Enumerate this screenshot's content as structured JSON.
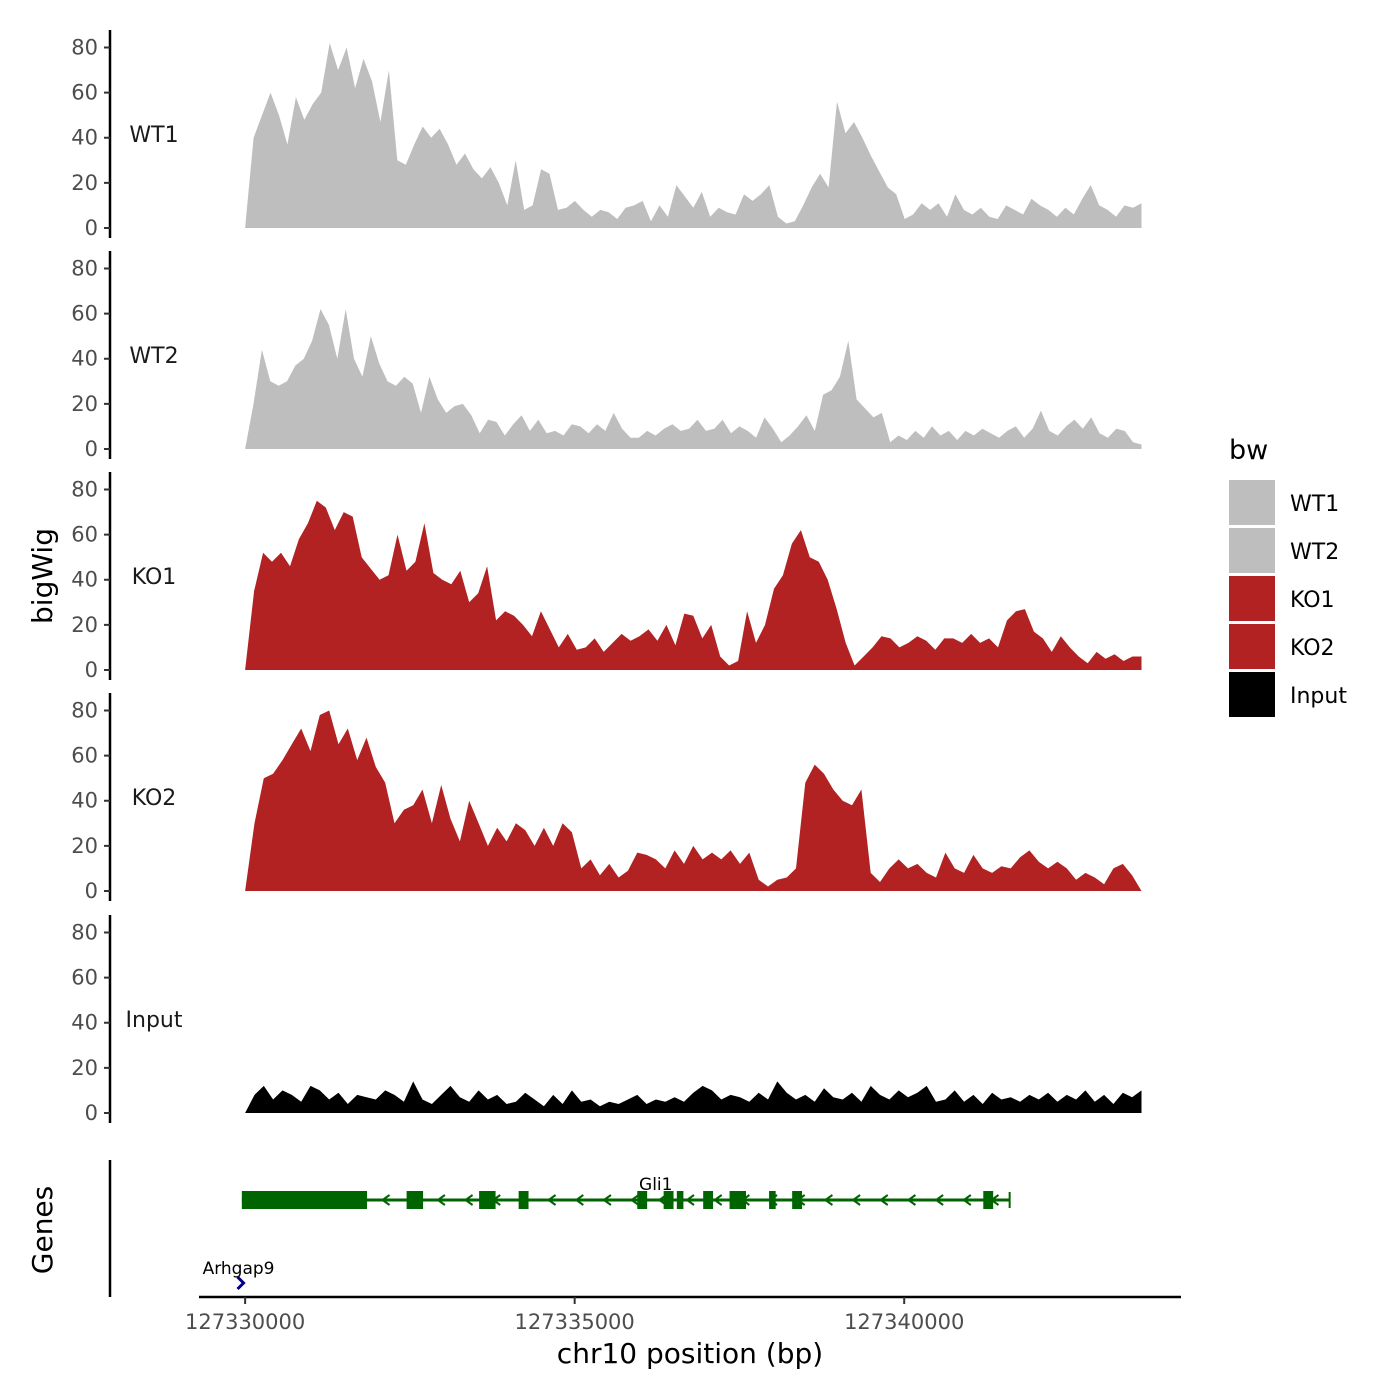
{
  "chart_data": {
    "type": "area",
    "ylabel": "bigWig",
    "genes_label": "Genes",
    "xlabel": "chr10 position (bp)",
    "x_ticks": [
      127330000,
      127335000,
      127340000
    ],
    "x_tick_labels": [
      "127330000",
      "127335000",
      "127340000"
    ],
    "xlim": [
      127329300,
      127344200
    ],
    "x_start": 127330000,
    "x_end": 127343600,
    "ylim": [
      0,
      86
    ],
    "y_ticks": [
      0,
      20,
      40,
      60,
      80
    ],
    "y_tick_labels": [
      "0",
      "20",
      "40",
      "60",
      "80"
    ],
    "legend": {
      "title": "bw",
      "position": "right",
      "entries": [
        {
          "label": "WT1",
          "color": "#bebebe"
        },
        {
          "label": "WT2",
          "color": "#bebebe"
        },
        {
          "label": "KO1",
          "color": "#b22222"
        },
        {
          "label": "KO2",
          "color": "#b22222"
        },
        {
          "label": "Input",
          "color": "#000000"
        }
      ]
    },
    "series": [
      {
        "name": "WT1",
        "color": "#bebebe",
        "values": [
          0,
          40,
          50,
          60,
          50,
          37,
          58,
          48,
          55,
          60,
          82,
          70,
          80,
          62,
          75,
          65,
          47,
          70,
          30,
          28,
          37,
          45,
          40,
          44,
          37,
          28,
          33,
          26,
          22,
          27,
          20,
          10,
          30,
          8,
          10,
          26,
          24,
          8,
          9,
          12,
          8,
          5,
          8,
          7,
          4,
          9,
          10,
          12,
          3,
          10,
          5,
          19,
          14,
          9,
          16,
          5,
          9,
          7,
          6,
          15,
          12,
          15,
          19,
          5,
          2,
          3,
          10,
          18,
          24,
          18,
          56,
          42,
          47,
          40,
          32,
          25,
          18,
          15,
          4,
          6,
          11,
          8,
          11,
          5,
          15,
          8,
          6,
          9,
          5,
          4,
          10,
          8,
          6,
          13,
          10,
          8,
          5,
          9,
          6,
          13,
          19,
          10,
          8,
          5,
          10,
          9,
          11
        ]
      },
      {
        "name": "WT2",
        "color": "#bebebe",
        "values": [
          0,
          20,
          44,
          30,
          28,
          30,
          37,
          40,
          48,
          62,
          55,
          40,
          62,
          40,
          32,
          50,
          38,
          30,
          28,
          32,
          29,
          16,
          32,
          22,
          16,
          19,
          20,
          15,
          7,
          13,
          12,
          6,
          11,
          15,
          8,
          13,
          7,
          8,
          6,
          11,
          10,
          7,
          11,
          8,
          16,
          9,
          5,
          5,
          8,
          6,
          9,
          11,
          8,
          9,
          13,
          8,
          9,
          13,
          7,
          10,
          8,
          5,
          14,
          9,
          3,
          6,
          10,
          15,
          8,
          24,
          26,
          32,
          48,
          22,
          18,
          14,
          16,
          3,
          6,
          4,
          8,
          5,
          10,
          6,
          8,
          4,
          8,
          6,
          9,
          7,
          5,
          8,
          10,
          5,
          9,
          17,
          8,
          6,
          10,
          13,
          9,
          14,
          7,
          5,
          9,
          8,
          3,
          2
        ]
      },
      {
        "name": "KO1",
        "color": "#b22222",
        "values": [
          0,
          35,
          52,
          48,
          52,
          46,
          58,
          65,
          75,
          72,
          62,
          70,
          68,
          50,
          45,
          40,
          42,
          60,
          44,
          48,
          65,
          43,
          40,
          38,
          44,
          30,
          34,
          46,
          22,
          26,
          24,
          20,
          15,
          26,
          18,
          10,
          16,
          9,
          10,
          14,
          8,
          12,
          16,
          13,
          15,
          18,
          13,
          20,
          11,
          25,
          24,
          14,
          20,
          6,
          2,
          4,
          26,
          12,
          20,
          36,
          42,
          56,
          62,
          50,
          48,
          40,
          27,
          12,
          2,
          6,
          10,
          15,
          14,
          10,
          12,
          15,
          13,
          9,
          14,
          14,
          12,
          16,
          12,
          14,
          10,
          22,
          26,
          27,
          17,
          14,
          8,
          15,
          10,
          6,
          3,
          8,
          5,
          7,
          4,
          6,
          6
        ]
      },
      {
        "name": "KO2",
        "color": "#b22222",
        "values": [
          0,
          30,
          50,
          52,
          58,
          65,
          72,
          62,
          78,
          80,
          65,
          72,
          58,
          68,
          55,
          48,
          30,
          36,
          38,
          45,
          30,
          47,
          32,
          22,
          40,
          30,
          20,
          28,
          22,
          30,
          27,
          20,
          28,
          20,
          30,
          26,
          10,
          14,
          7,
          12,
          6,
          9,
          17,
          16,
          14,
          10,
          18,
          12,
          20,
          14,
          17,
          14,
          18,
          12,
          17,
          5,
          2,
          5,
          6,
          10,
          48,
          56,
          52,
          45,
          40,
          38,
          45,
          8,
          4,
          10,
          14,
          10,
          12,
          8,
          6,
          17,
          10,
          8,
          16,
          10,
          8,
          11,
          10,
          15,
          18,
          13,
          10,
          13,
          10,
          5,
          8,
          6,
          3,
          10,
          12,
          7,
          0
        ]
      },
      {
        "name": "Input",
        "color": "#000000",
        "values": [
          0,
          8,
          12,
          6,
          10,
          8,
          5,
          12,
          10,
          6,
          9,
          4,
          8,
          7,
          6,
          10,
          8,
          5,
          14,
          6,
          4,
          8,
          12,
          7,
          5,
          10,
          6,
          8,
          4,
          5,
          9,
          6,
          3,
          8,
          4,
          10,
          5,
          6,
          3,
          5,
          4,
          6,
          8,
          4,
          6,
          5,
          7,
          5,
          9,
          12,
          10,
          6,
          8,
          7,
          5,
          9,
          6,
          14,
          9,
          6,
          8,
          5,
          11,
          7,
          6,
          9,
          5,
          12,
          8,
          6,
          10,
          7,
          9,
          12,
          5,
          6,
          10,
          5,
          8,
          4,
          9,
          6,
          7,
          5,
          8,
          6,
          9,
          5,
          8,
          6,
          10,
          5,
          8,
          4,
          9,
          7,
          10
        ]
      }
    ],
    "genes": [
      {
        "name": "Gli1",
        "color": "#006400",
        "start": 127329950,
        "end": 127341600,
        "strand": "-",
        "exons": [
          [
            127329950,
            127331850
          ],
          [
            127332450,
            127332700
          ],
          [
            127333550,
            127333800
          ],
          [
            127334150,
            127334300
          ],
          [
            127335950,
            127336100
          ],
          [
            127336350,
            127336500
          ],
          [
            127336550,
            127336650
          ],
          [
            127336950,
            127337100
          ],
          [
            127337350,
            127337600
          ],
          [
            127337950,
            127338050
          ],
          [
            127338300,
            127338450
          ],
          [
            127341200,
            127341350
          ]
        ]
      },
      {
        "name": "Arhgap9",
        "color": "#00008b",
        "start": 127329900,
        "end": 127329990,
        "strand": "+",
        "exons": [
          [
            127329900,
            127329990
          ]
        ]
      }
    ]
  }
}
